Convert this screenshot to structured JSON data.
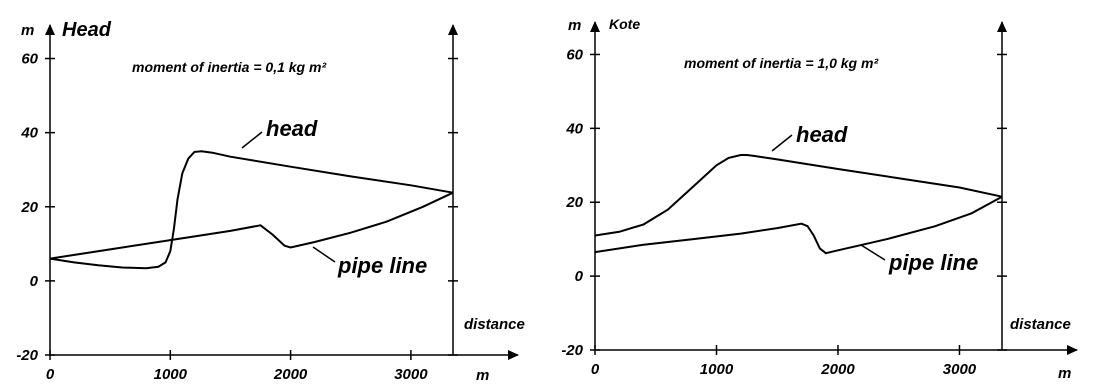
{
  "chart_data": [
    {
      "type": "line",
      "title": "Head",
      "ylabel": "m",
      "xlabel": "m",
      "right_axis_label": "distance",
      "annotation": "moment of inertia  = 0,1 kg m²",
      "xlim": [
        0,
        3350
      ],
      "ylim": [
        -20,
        65
      ],
      "x_ticks": [
        0,
        1000,
        2000,
        3000
      ],
      "x_tick_labels": [
        "0",
        "1000",
        "2000",
        "3000"
      ],
      "y_ticks": [
        -20,
        0,
        20,
        40,
        60
      ],
      "y_tick_labels": [
        "-20",
        "0",
        "20",
        "40",
        "60"
      ],
      "grid": false,
      "series": [
        {
          "name": "head",
          "x": [
            0,
            200,
            400,
            600,
            800,
            900,
            960,
            1000,
            1030,
            1060,
            1100,
            1150,
            1200,
            1260,
            1350,
            1500,
            2000,
            2500,
            3000,
            3350
          ],
          "y": [
            6,
            5,
            4.2,
            3.6,
            3.4,
            3.8,
            5,
            8,
            14,
            22,
            29,
            33,
            34.8,
            35,
            34.6,
            33.5,
            30.8,
            28.2,
            25.8,
            23.8
          ]
        },
        {
          "name": "pipe line",
          "x": [
            0,
            500,
            1000,
            1500,
            1750,
            1850,
            1950,
            2000,
            2200,
            2500,
            2800,
            3100,
            3350
          ],
          "y": [
            6,
            8.5,
            11,
            13.5,
            15,
            12.5,
            9.5,
            9,
            10.5,
            13,
            16,
            20,
            23.8
          ]
        }
      ]
    },
    {
      "type": "line",
      "title": "Kote",
      "ylabel": "m",
      "xlabel": "m",
      "right_axis_label": "distance",
      "annotation": "moment of inertia  = 1,0 kg m²",
      "xlim": [
        0,
        3350
      ],
      "ylim": [
        -20,
        65
      ],
      "x_ticks": [
        0,
        1000,
        2000,
        3000
      ],
      "x_tick_labels": [
        "0",
        "1000",
        "2000",
        "3000"
      ],
      "y_ticks": [
        -20,
        0,
        20,
        40,
        60
      ],
      "y_tick_labels": [
        "-20",
        "0",
        "20",
        "40",
        "60"
      ],
      "grid": false,
      "series": [
        {
          "name": "head",
          "x": [
            0,
            200,
            400,
            600,
            800,
            1000,
            1100,
            1200,
            1250,
            1300,
            1500,
            2000,
            2500,
            3000,
            3350
          ],
          "y": [
            11,
            12,
            14,
            18,
            24,
            30,
            32,
            32.8,
            32.8,
            32.6,
            31.6,
            29,
            26.5,
            24,
            21.5
          ]
        },
        {
          "name": "pipe line",
          "x": [
            0,
            400,
            800,
            1200,
            1500,
            1700,
            1750,
            1800,
            1850,
            1900,
            2000,
            2400,
            2800,
            3100,
            3350
          ],
          "y": [
            6.5,
            8.5,
            10,
            11.5,
            13,
            14.2,
            13.5,
            11,
            7.5,
            6.2,
            7,
            10,
            13.5,
            17,
            21.5
          ]
        }
      ]
    }
  ]
}
